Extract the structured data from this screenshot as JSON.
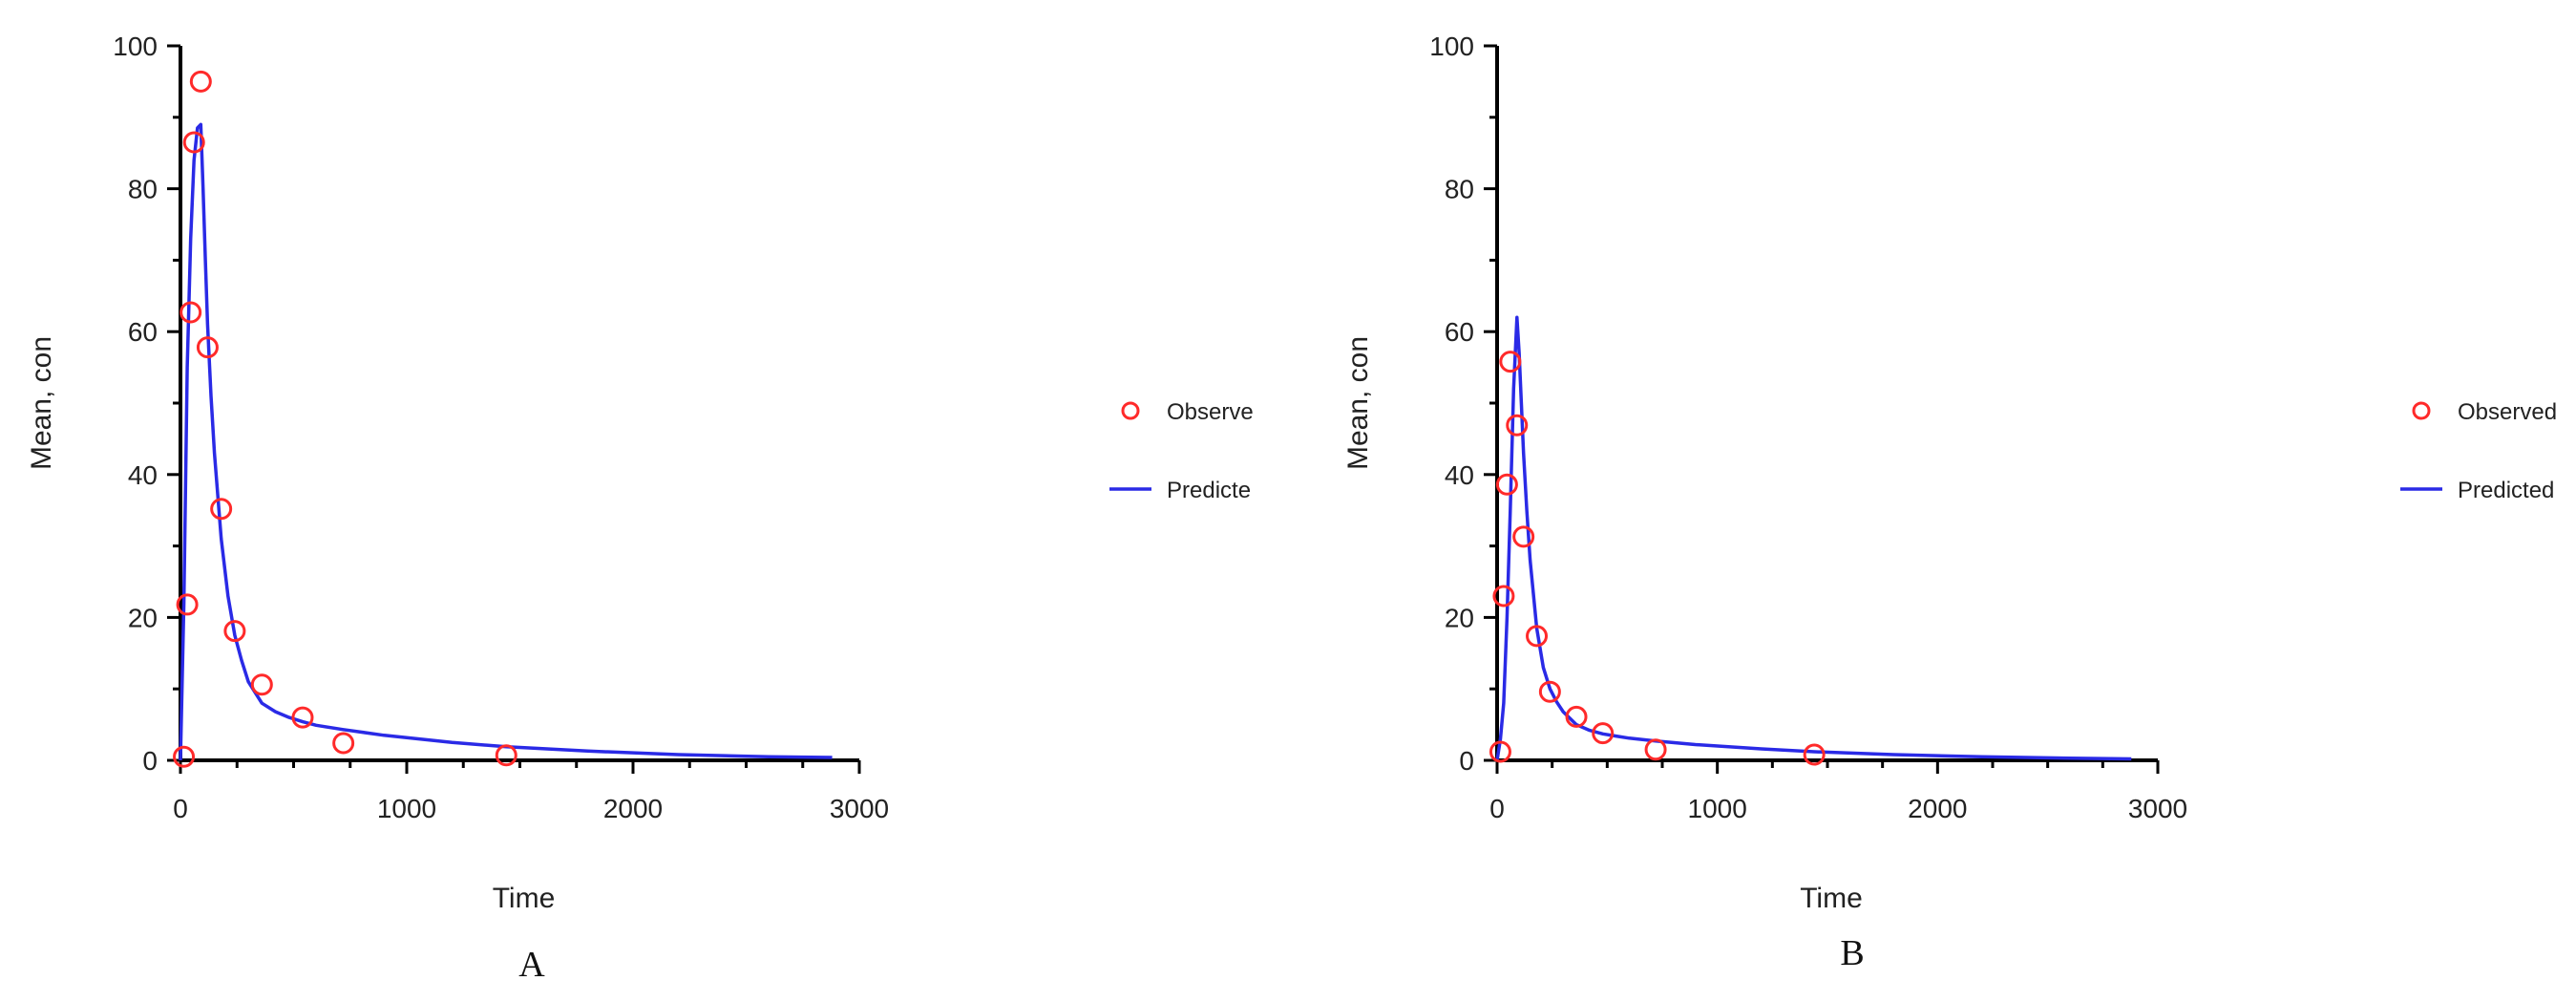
{
  "colors": {
    "observed": "#ff2a2a",
    "predicted": "#2a2ae6",
    "axis": "#000000",
    "text": "#222222"
  },
  "chart_data": [
    {
      "type": "scatter",
      "panel_label": "A",
      "xlabel": "Time",
      "ylabel": "Mean, con",
      "xlim": [
        0,
        3000
      ],
      "ylim": [
        0,
        100
      ],
      "xticks": [
        0,
        1000,
        2000,
        3000
      ],
      "yticks": [
        0,
        20,
        40,
        60,
        80,
        100
      ],
      "grid": false,
      "legend_position": "right",
      "series": [
        {
          "name": "Observe",
          "kind": "markers",
          "x": [
            15,
            30,
            45,
            60,
            90,
            120,
            180,
            240,
            360,
            540,
            720,
            1440
          ],
          "y": [
            0.5,
            21.8,
            62.7,
            86.5,
            95.0,
            57.8,
            35.2,
            18.1,
            10.6,
            6.0,
            2.4,
            0.7
          ]
        },
        {
          "name": "Predicte",
          "kind": "line",
          "x": [
            0,
            15,
            30,
            45,
            60,
            75,
            90,
            100,
            110,
            120,
            135,
            150,
            180,
            210,
            240,
            270,
            300,
            360,
            420,
            480,
            540,
            600,
            720,
            900,
            1200,
            1440,
            1800,
            2200,
            2600,
            2880
          ],
          "y": [
            0,
            22,
            55,
            73,
            84,
            88.5,
            89,
            80,
            70,
            61,
            51,
            43,
            31,
            23,
            17.5,
            14,
            11,
            8,
            6.8,
            6,
            5.4,
            4.9,
            4.3,
            3.5,
            2.5,
            1.9,
            1.3,
            0.8,
            0.5,
            0.4
          ]
        }
      ]
    },
    {
      "type": "scatter",
      "panel_label": "B",
      "xlabel": "Time",
      "ylabel": "Mean, con",
      "xlim": [
        0,
        3000
      ],
      "ylim": [
        0,
        100
      ],
      "xticks": [
        0,
        1000,
        2000,
        3000
      ],
      "yticks": [
        0,
        20,
        40,
        60,
        80,
        100
      ],
      "grid": false,
      "legend_position": "right",
      "series": [
        {
          "name": "Observed",
          "kind": "markers",
          "x": [
            15,
            30,
            45,
            60,
            90,
            120,
            180,
            240,
            360,
            480,
            720,
            1440
          ],
          "y": [
            1.2,
            23.0,
            38.6,
            55.8,
            46.9,
            31.3,
            17.4,
            9.6,
            6.1,
            3.8,
            1.5,
            0.8
          ]
        },
        {
          "name": "Predicted",
          "kind": "line",
          "x": [
            0,
            15,
            30,
            45,
            60,
            75,
            90,
            100,
            110,
            120,
            135,
            150,
            180,
            210,
            240,
            270,
            300,
            360,
            420,
            480,
            540,
            600,
            720,
            900,
            1200,
            1440,
            1800,
            2200,
            2600,
            2880
          ],
          "y": [
            0,
            3,
            8,
            20,
            35,
            52,
            62,
            57,
            50,
            43,
            35,
            28,
            18.5,
            13,
            10,
            8.2,
            6.8,
            5,
            4.2,
            3.7,
            3.4,
            3.1,
            2.7,
            2.2,
            1.6,
            1.2,
            0.8,
            0.5,
            0.3,
            0.2
          ]
        }
      ]
    }
  ]
}
